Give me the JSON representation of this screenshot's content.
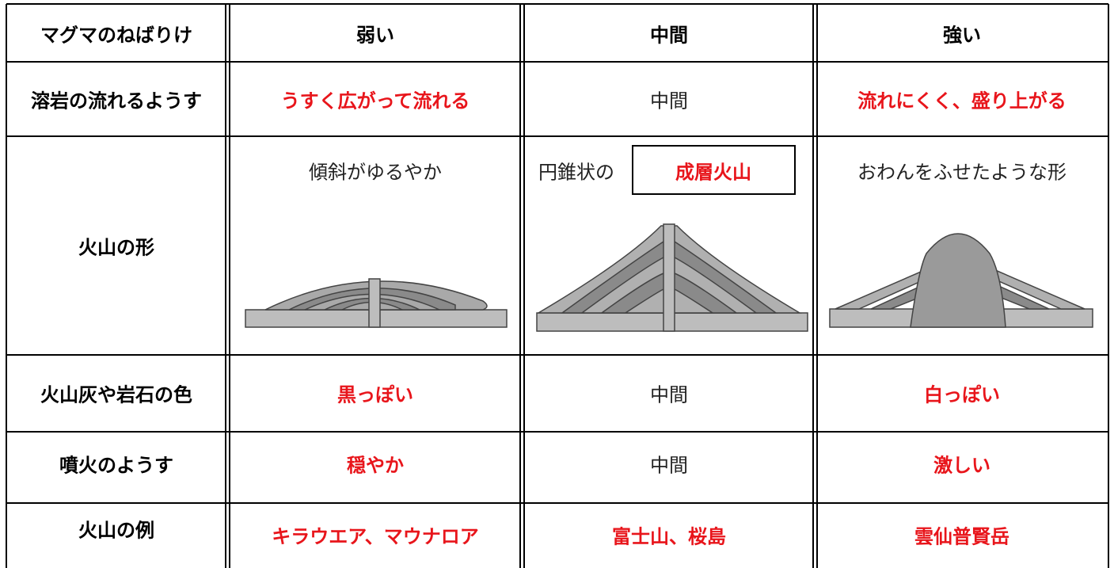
{
  "table": {
    "header": [
      "マグマのねばりけ",
      "弱い",
      "中間",
      "強い"
    ],
    "rows": [
      [
        "溶岩の流れるようす",
        "うすく広がって流れる",
        "中間",
        "流れにくく、盛り上がる"
      ],
      [
        "火山の形",
        "傾斜がゆるやか",
        {
          "text": "円錐状の",
          "boxed": "成層火山"
        },
        "おわんをふせたような形"
      ],
      [
        "火山灰や岩石の色",
        "黒っぽい",
        "中間",
        "白っぽい"
      ],
      [
        "噴火のようす",
        "穏やか",
        "中間",
        "激しい"
      ],
      [
        "火山の例",
        "キラウエア、マウナロア",
        "富士山、桜島",
        "雲仙普賢岳"
      ]
    ]
  }
}
